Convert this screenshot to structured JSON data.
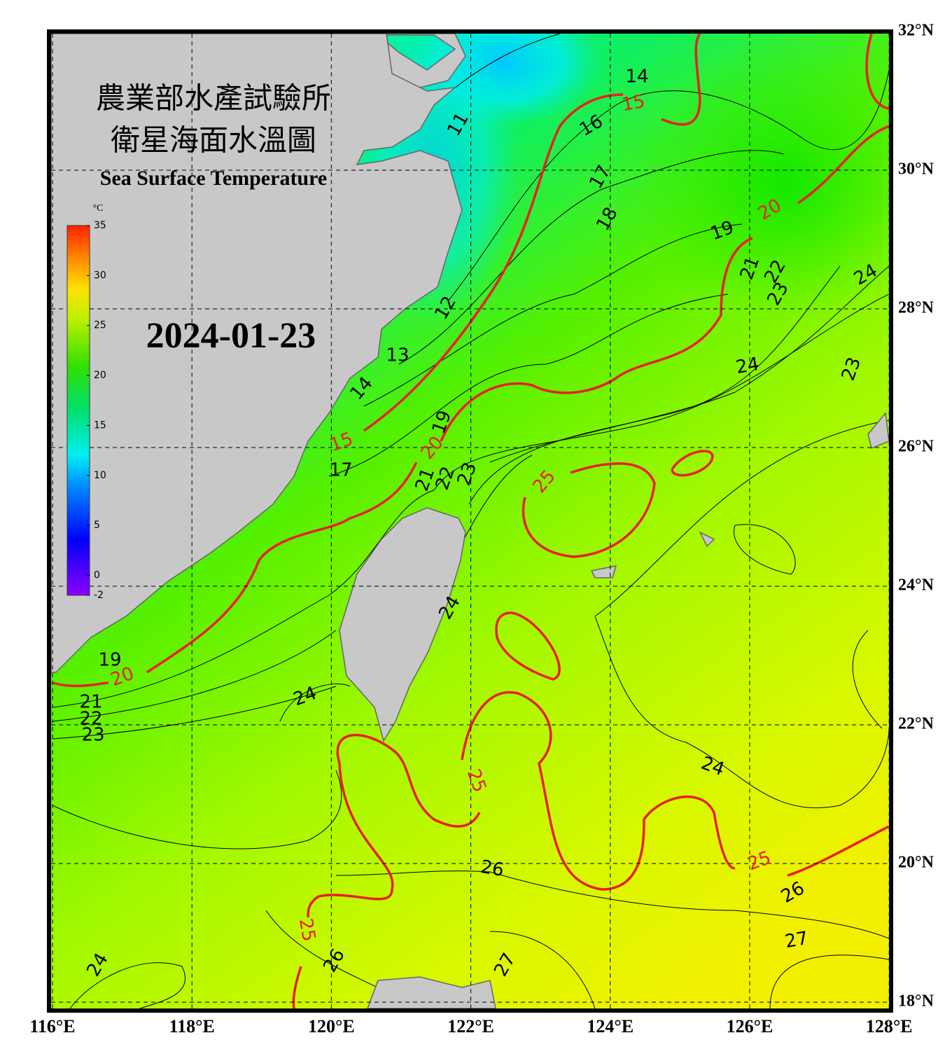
{
  "map": {
    "title": "農業部水產試驗所",
    "subtitle": "衛星海面水溫圖",
    "english_title": "Sea Surface Temperature",
    "date": "2024-01-23",
    "lon_ticks": [
      {
        "value": 116,
        "label": "116°E"
      },
      {
        "value": 118,
        "label": "118°E"
      },
      {
        "value": 120,
        "label": "120°E"
      },
      {
        "value": 122,
        "label": "122°E"
      },
      {
        "value": 124,
        "label": "124°E"
      },
      {
        "value": 126,
        "label": "126°E"
      },
      {
        "value": 128,
        "label": "128°E"
      }
    ],
    "lat_ticks": [
      {
        "value": 32,
        "label": "32°N"
      },
      {
        "value": 30,
        "label": "30°N"
      },
      {
        "value": 28,
        "label": "28°N"
      },
      {
        "value": 26,
        "label": "26°N"
      },
      {
        "value": 24,
        "label": "24°N"
      },
      {
        "value": 22,
        "label": "22°N"
      },
      {
        "value": 20,
        "label": "20°N"
      },
      {
        "value": 18,
        "label": "18°N"
      }
    ],
    "colorbar": {
      "unit": "°C",
      "range": [
        -2,
        35
      ],
      "ticks": [
        -2,
        0,
        5,
        10,
        15,
        20,
        25,
        30,
        35
      ]
    },
    "contour_labels": [
      14,
      15,
      11,
      16,
      17,
      18,
      19,
      20,
      21,
      22,
      23,
      24,
      12,
      13,
      24,
      23,
      14,
      15,
      19,
      20,
      17,
      21,
      22,
      23,
      25,
      24,
      19,
      20,
      21,
      22,
      23,
      24,
      25,
      24,
      25,
      26,
      26,
      25,
      27,
      26,
      27,
      24
    ]
  }
}
